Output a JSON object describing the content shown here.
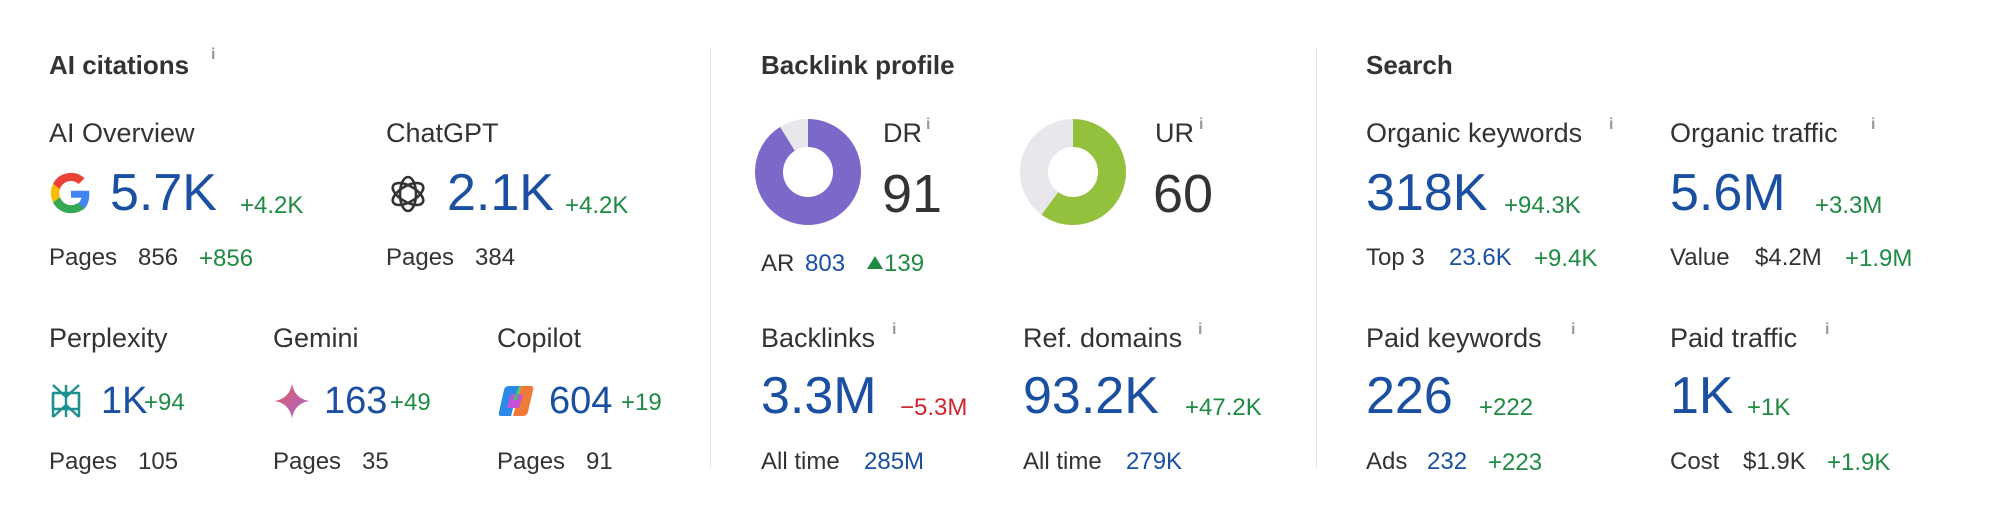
{
  "ai_citations": {
    "title": "AI citations",
    "info": "i",
    "ai_overview": {
      "label": "AI Overview",
      "icon": "google-icon",
      "value": "5.7K",
      "delta": "+4.2K",
      "pages_label": "Pages",
      "pages_value": "856",
      "pages_delta": "+856"
    },
    "chatgpt": {
      "label": "ChatGPT",
      "icon": "openai-icon",
      "value": "2.1K",
      "delta": "+4.2K",
      "pages_label": "Pages",
      "pages_value": "384"
    },
    "perplexity": {
      "label": "Perplexity",
      "icon": "perplexity-icon",
      "value": "1K",
      "delta": "+94",
      "pages_label": "Pages",
      "pages_value": "105"
    },
    "gemini": {
      "label": "Gemini",
      "icon": "gemini-icon",
      "value": "163",
      "delta": "+49",
      "pages_label": "Pages",
      "pages_value": "35"
    },
    "copilot": {
      "label": "Copilot",
      "icon": "copilot-icon",
      "value": "604",
      "delta": "+19",
      "pages_label": "Pages",
      "pages_value": "91"
    }
  },
  "backlink_profile": {
    "title": "Backlink profile",
    "dr": {
      "label": "DR",
      "info": "i",
      "value": "91",
      "fill": 0.91,
      "color": "#7b68c9"
    },
    "ur": {
      "label": "UR",
      "info": "i",
      "value": "60",
      "fill": 0.6,
      "color": "#93c13e"
    },
    "ar": {
      "label": "AR",
      "value": "803",
      "delta": "139"
    },
    "backlinks": {
      "label": "Backlinks",
      "info": "i",
      "value": "3.3M",
      "delta": "−5.3M",
      "sub_label": "All time",
      "sub_value": "285M"
    },
    "ref_domains": {
      "label": "Ref. domains",
      "info": "i",
      "value": "93.2K",
      "delta": "+47.2K",
      "sub_label": "All time",
      "sub_value": "279K"
    }
  },
  "search": {
    "title": "Search",
    "organic_keywords": {
      "label": "Organic keywords",
      "info": "i",
      "value": "318K",
      "delta": "+94.3K",
      "sub_label": "Top 3",
      "sub_value": "23.6K",
      "sub_delta": "+9.4K"
    },
    "organic_traffic": {
      "label": "Organic traffic",
      "info": "i",
      "value": "5.6M",
      "delta": "+3.3M",
      "sub_label": "Value",
      "sub_value": "$4.2M",
      "sub_delta": "+1.9M"
    },
    "paid_keywords": {
      "label": "Paid keywords",
      "info": "i",
      "value": "226",
      "delta": "+222",
      "sub_label": "Ads",
      "sub_value": "232",
      "sub_delta": "+223"
    },
    "paid_traffic": {
      "label": "Paid traffic",
      "info": "i",
      "value": "1K",
      "delta": "+1K",
      "sub_label": "Cost",
      "sub_value": "$1.9K",
      "sub_delta": "+1.9K"
    }
  },
  "colors": {
    "value_blue": "#1a4fa1",
    "positive_green": "#1f8a43",
    "negative_red": "#d1242f",
    "divider": "#e3e3e3"
  }
}
